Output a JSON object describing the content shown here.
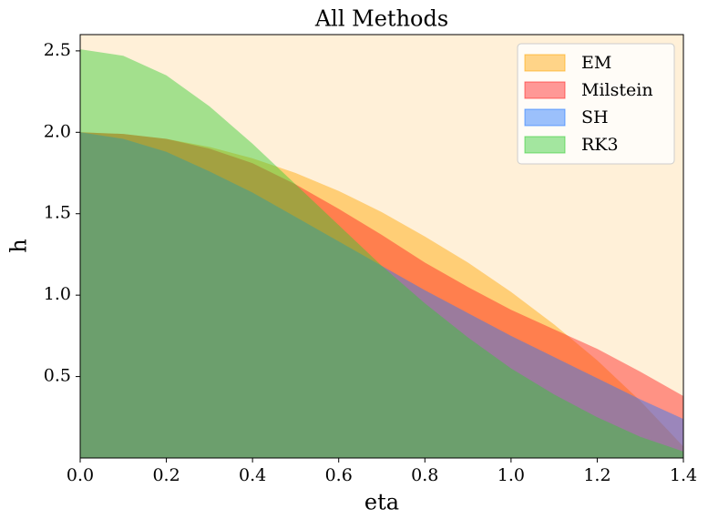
{
  "chart_data": {
    "type": "area",
    "title": "All Methods",
    "x_label": "eta",
    "y_label": "h",
    "x": [
      0,
      0.1,
      0.2,
      0.3,
      0.4,
      0.5,
      0.6,
      0.7,
      0.8,
      0.9,
      1.0,
      1.1,
      1.2,
      1.3,
      1.4
    ],
    "series": [
      {
        "name": "EM",
        "color": "#ffa500",
        "values": [
          2.0,
          1.99,
          1.96,
          1.91,
          1.84,
          1.75,
          1.64,
          1.51,
          1.36,
          1.2,
          1.02,
          0.82,
          0.6,
          0.35,
          0.07
        ]
      },
      {
        "name": "Milstein",
        "color": "#ff2020",
        "values": [
          2.0,
          1.99,
          1.96,
          1.9,
          1.81,
          1.68,
          1.53,
          1.37,
          1.2,
          1.05,
          0.91,
          0.79,
          0.67,
          0.53,
          0.38
        ]
      },
      {
        "name": "SH",
        "color": "#2277ff",
        "values": [
          2.0,
          1.96,
          1.88,
          1.76,
          1.63,
          1.48,
          1.33,
          1.18,
          1.03,
          0.89,
          0.75,
          0.62,
          0.49,
          0.36,
          0.24
        ]
      },
      {
        "name": "RK3",
        "color": "#32cd32",
        "values": [
          2.51,
          2.47,
          2.35,
          2.16,
          1.93,
          1.68,
          1.43,
          1.18,
          0.95,
          0.74,
          0.55,
          0.39,
          0.25,
          0.13,
          0.04
        ]
      }
    ],
    "xlim": [
      0,
      1.4
    ],
    "ylim": [
      0,
      2.6
    ],
    "xticks": [
      {
        "value": 0,
        "label": "0.0"
      },
      0.2,
      0.4,
      0.6,
      0.8,
      {
        "value": 1,
        "label": "1.0"
      },
      1.2,
      1.4
    ],
    "yticks": [
      0.5,
      {
        "value": 1,
        "label": "1.0"
      },
      1.5,
      {
        "value": 2,
        "label": "2.0"
      },
      2.5
    ],
    "legend": "upper right",
    "background": "#fff0d8"
  }
}
